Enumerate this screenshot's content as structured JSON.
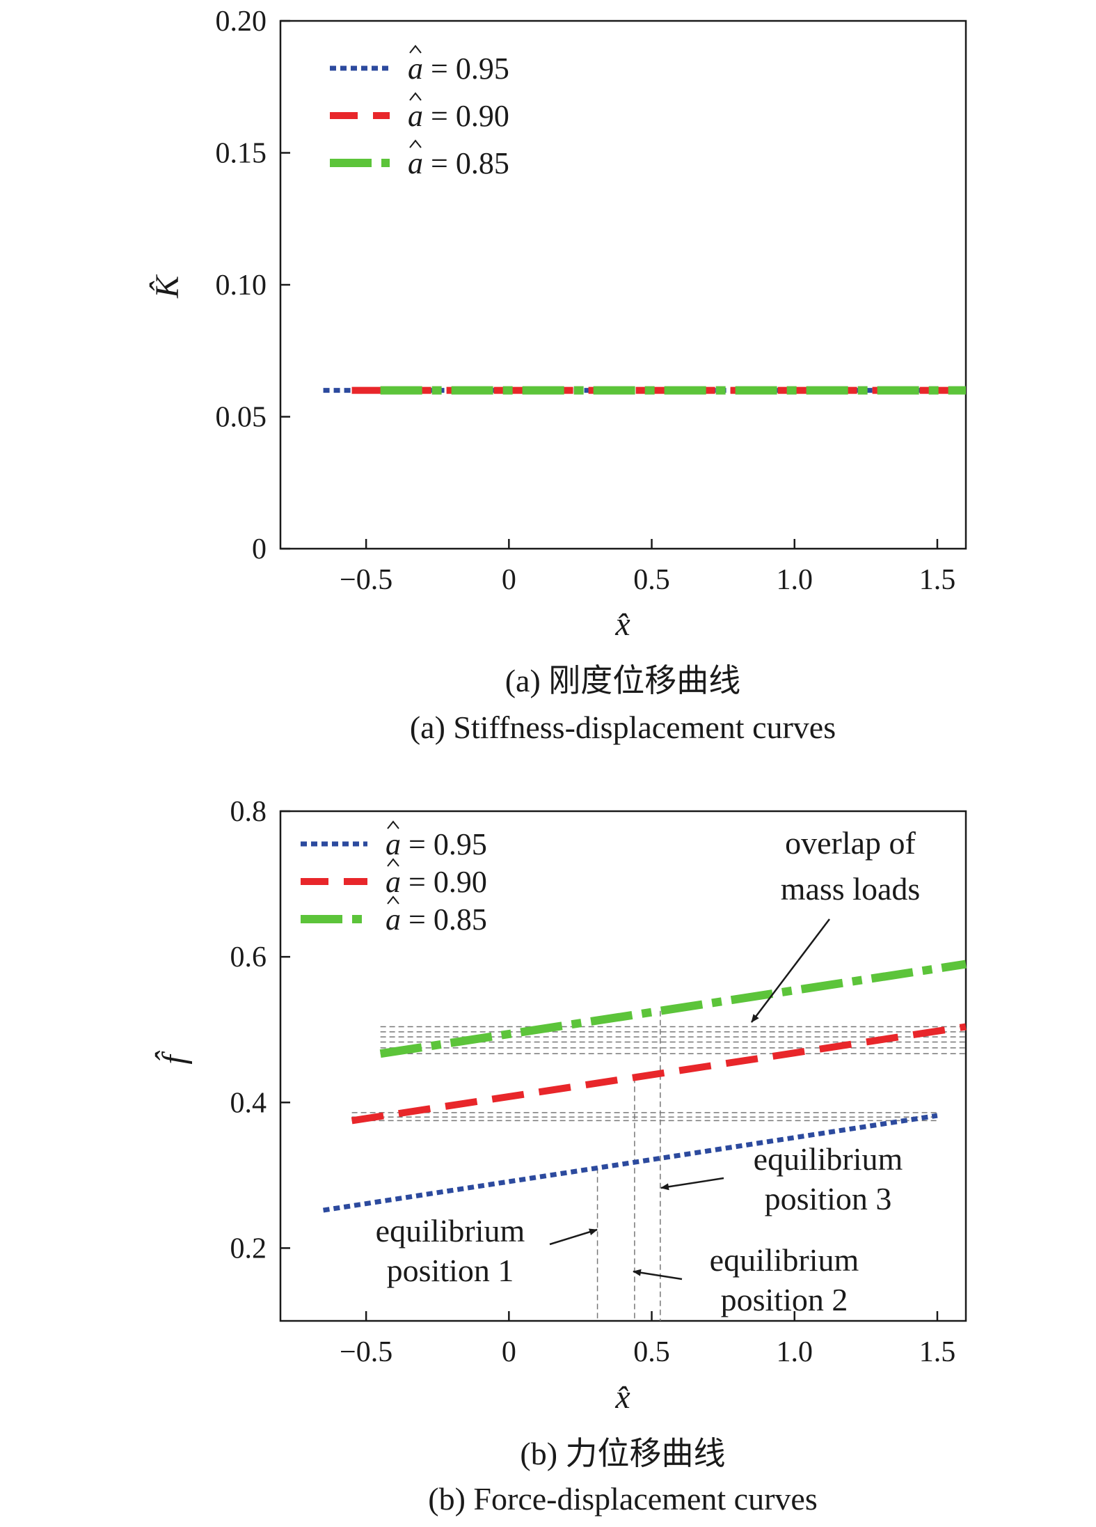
{
  "figure": {
    "caption_a_cn": "(a) 刚度位移曲线",
    "caption_a_en": "(a) Stiffness-displacement curves",
    "caption_b_cn": "(b) 力位移曲线",
    "caption_b_en": "(b) Force-displacement curves"
  },
  "chart_data": [
    {
      "id": "a",
      "type": "line",
      "xlabel": "x̂",
      "ylabel": "K̂",
      "xlim": [
        -0.8,
        1.6
      ],
      "ylim": [
        0,
        0.2
      ],
      "xticks": [
        -0.5,
        0,
        0.5,
        1.0,
        1.5
      ],
      "xtick_labels": [
        "−0.5",
        "0",
        "0.5",
        "1.0",
        "1.5"
      ],
      "yticks": [
        0,
        0.05,
        0.1,
        0.15,
        0.2
      ],
      "ytick_labels": [
        "0",
        "0.05",
        "0.10",
        "0.15",
        "0.20"
      ],
      "grid": false,
      "legend_position": "top-left",
      "series": [
        {
          "name": "â = 0.95",
          "label_var": "a",
          "label_value": "= 0.95",
          "color": "#2c4a9e",
          "style": "dotted",
          "x": [
            -0.65,
            1.6
          ],
          "y": [
            0.06,
            0.06
          ]
        },
        {
          "name": "â = 0.90",
          "label_var": "a",
          "label_value": "= 0.90",
          "color": "#e8262a",
          "style": "dashed",
          "x": [
            -0.55,
            1.6
          ],
          "y": [
            0.06,
            0.06
          ]
        },
        {
          "name": "â = 0.85",
          "label_var": "a",
          "label_value": "= 0.85",
          "color": "#5cc43a",
          "style": "dashdot",
          "x": [
            -0.45,
            1.6
          ],
          "y": [
            0.06,
            0.06
          ]
        }
      ]
    },
    {
      "id": "b",
      "type": "line",
      "xlabel": "x̂",
      "ylabel": "f̂",
      "xlim": [
        -0.8,
        1.6
      ],
      "ylim": [
        0.1,
        0.8
      ],
      "xticks": [
        -0.5,
        0,
        0.5,
        1.0,
        1.5
      ],
      "xtick_labels": [
        "−0.5",
        "0",
        "0.5",
        "1.0",
        "1.5"
      ],
      "yticks": [
        0.2,
        0.4,
        0.6,
        0.8
      ],
      "ytick_labels": [
        "0.2",
        "0.4",
        "0.6",
        "0.8"
      ],
      "grid": false,
      "legend_position": "top-left",
      "series": [
        {
          "name": "â = 0.95",
          "label_var": "a",
          "label_value": "= 0.95",
          "color": "#2c4a9e",
          "style": "dotted",
          "x": [
            -0.65,
            1.5
          ],
          "y": [
            0.252,
            0.382
          ]
        },
        {
          "name": "â = 0.90",
          "label_var": "a",
          "label_value": "= 0.90",
          "color": "#e8262a",
          "style": "dashed",
          "x": [
            -0.55,
            1.6
          ],
          "y": [
            0.375,
            0.504
          ]
        },
        {
          "name": "â = 0.85",
          "label_var": "a",
          "label_value": "= 0.85",
          "color": "#5cc43a",
          "style": "dashdot",
          "x": [
            -0.45,
            1.6
          ],
          "y": [
            0.467,
            0.59
          ]
        }
      ],
      "equilibrium_x": [
        0.31,
        0.44,
        0.53
      ],
      "annotations": {
        "overlap_line1": "overlap of",
        "overlap_line2": "mass loads",
        "eq1_line1": "equilibrium",
        "eq1_line2": "position 1",
        "eq2_line1": "equilibrium",
        "eq2_line2": "position 2",
        "eq3_line1": "equilibrium",
        "eq3_line2": "position 3"
      }
    }
  ]
}
